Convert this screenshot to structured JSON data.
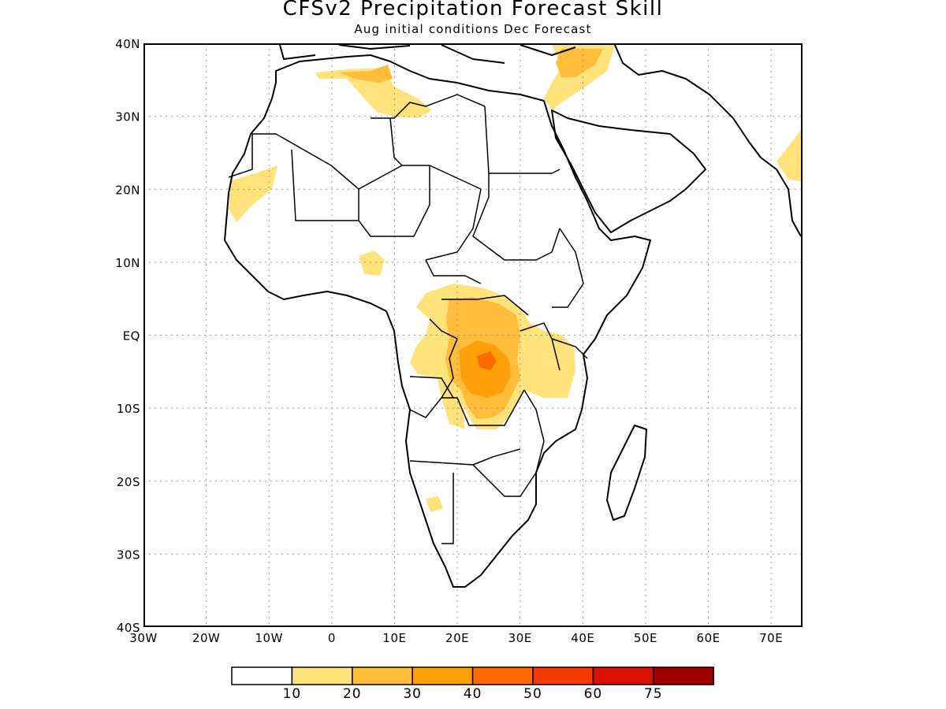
{
  "header": {
    "title": "CFSv2 Precipitation Forecast Skill",
    "subtitle": "Aug initial conditions  Dec Forecast"
  },
  "axes": {
    "lat_labels": [
      "40N",
      "30N",
      "20N",
      "10N",
      "EQ",
      "10S",
      "20S",
      "30S",
      "40S"
    ],
    "lon_labels": [
      "30W",
      "20W",
      "10W",
      "0",
      "10E",
      "20E",
      "30E",
      "40E",
      "50E",
      "60E",
      "70E"
    ],
    "lon_range": [
      -30,
      75
    ],
    "lat_range": [
      -40,
      40
    ],
    "grid": true
  },
  "colorbar": {
    "bins": [
      {
        "color": "#ffffff"
      },
      {
        "color": "#ffe27a"
      },
      {
        "color": "#ffbd3a"
      },
      {
        "color": "#ff9f0a"
      },
      {
        "color": "#ff6a00"
      },
      {
        "color": "#f53b00"
      },
      {
        "color": "#d81100"
      },
      {
        "color": "#a00000"
      }
    ],
    "labels": [
      "10",
      "20",
      "30",
      "40",
      "50",
      "60",
      "75"
    ]
  },
  "colors": {
    "skill_10_20": "#ffe27a",
    "skill_20_30": "#ffbd3a",
    "skill_30_40": "#ff9f0a",
    "skill_40_50": "#ff6a00"
  }
}
